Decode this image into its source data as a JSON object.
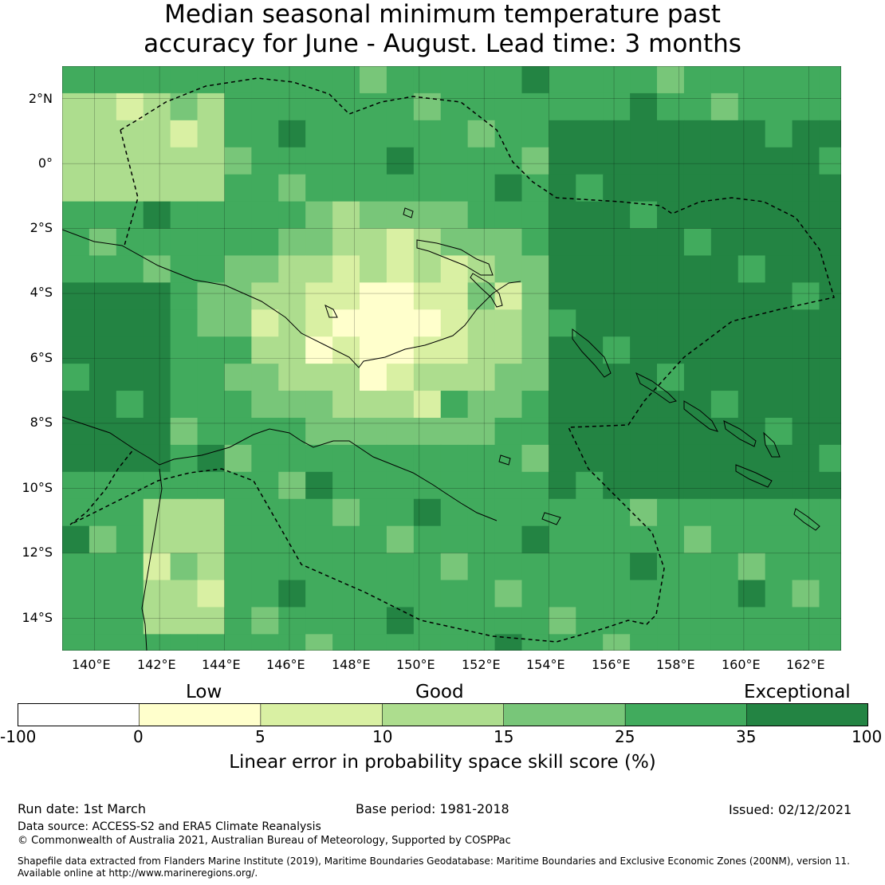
{
  "title_lines": [
    "Median seasonal minimum temperature past",
    "accuracy for June - August. Lead time: 3 months"
  ],
  "map": {
    "lon_range": [
      139,
      163
    ],
    "lat_range": [
      -15,
      3
    ],
    "lat_ticks": [
      "2°N",
      "0°",
      "2°S",
      "4°S",
      "6°S",
      "8°S",
      "10°S",
      "12°S",
      "14°S"
    ],
    "lon_ticks": [
      "140°E",
      "142°E",
      "144°E",
      "146°E",
      "148°E",
      "150°E",
      "152°E",
      "154°E",
      "156°E",
      "158°E",
      "160°E",
      "162°E"
    ],
    "gridlines": true,
    "eez_boundary": "dashed"
  },
  "colorbar": {
    "band_labels": [
      "Low",
      "Good",
      "Exceptional"
    ],
    "boundaries": [
      "-100",
      "0",
      "5",
      "10",
      "15",
      "25",
      "35",
      "100"
    ],
    "colors": [
      "#ffffff",
      "#ffffcc",
      "#d9f0a3",
      "#addd8e",
      "#78c679",
      "#41ab5d",
      "#238443"
    ],
    "label": "Linear error in probability space skill score (%)"
  },
  "footer": {
    "run_date": "Run date: 1st March",
    "base_period": "Base period: 1981-2018",
    "issued": "Issued: 02/12/2021",
    "data_source": "Data source: ACCESS-S2 and ERA5 Climate Reanalysis",
    "copyright": "© Commonwealth of Australia 2021, Australian Bureau of Meteorology, Supported by COSPPac",
    "shapefile_line1": "Shapefile data extracted from Flanders Marine Institute (2019), Maritime Boundaries Geodatabase: Maritime Boundaries and Exclusive Economic Zones (200NM), version 11.",
    "shapefile_line2": "Available online at http://www.marineregions.org/."
  }
}
